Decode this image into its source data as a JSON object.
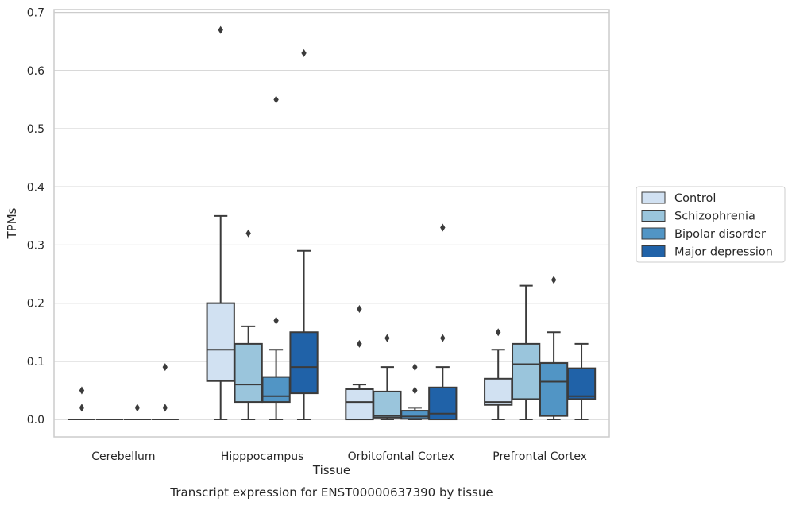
{
  "chart_data": {
    "type": "box",
    "caption": "Transcript expression for ENST00000637390 by tissue",
    "xlabel": "Tissue",
    "ylabel": "TPMs",
    "ylim": [
      -0.03,
      0.705
    ],
    "yticks": [
      "0.0",
      "0.1",
      "0.2",
      "0.3",
      "0.4",
      "0.5",
      "0.6",
      "0.7"
    ],
    "grid": "horizontal",
    "legend_position": "right",
    "categories": [
      "Cerebellum",
      "Hipppocampus",
      "Orbitofontal Cortex",
      "Prefrontal Cortex"
    ],
    "series": [
      {
        "name": "Control",
        "color": "#d1e1f2",
        "boxes": [
          {
            "whislo": 0,
            "q1": 0,
            "med": 0,
            "q3": 0,
            "whishi": 0,
            "fliers": [
              0.05,
              0.02
            ]
          },
          {
            "whislo": 0,
            "q1": 0.066,
            "med": 0.12,
            "q3": 0.2,
            "whishi": 0.35,
            "fliers": [
              0.67
            ]
          },
          {
            "whislo": 0,
            "q1": 0,
            "med": 0.03,
            "q3": 0.052,
            "whishi": 0.06,
            "fliers": [
              0.19,
              0.13
            ]
          },
          {
            "whislo": 0,
            "q1": 0.025,
            "med": 0.03,
            "q3": 0.07,
            "whishi": 0.12,
            "fliers": [
              0.15
            ]
          }
        ]
      },
      {
        "name": "Schizophrenia",
        "color": "#9ac5dc",
        "boxes": [
          {
            "whislo": 0,
            "q1": 0,
            "med": 0,
            "q3": 0,
            "whishi": 0,
            "fliers": []
          },
          {
            "whislo": 0,
            "q1": 0.03,
            "med": 0.06,
            "q3": 0.13,
            "whishi": 0.16,
            "fliers": [
              0.32
            ]
          },
          {
            "whislo": 0,
            "q1": 0.003,
            "med": 0.006,
            "q3": 0.048,
            "whishi": 0.09,
            "fliers": [
              0.14
            ]
          },
          {
            "whislo": 0,
            "q1": 0.035,
            "med": 0.095,
            "q3": 0.13,
            "whishi": 0.23,
            "fliers": []
          }
        ]
      },
      {
        "name": "Bipolar disorder",
        "color": "#5195c5",
        "boxes": [
          {
            "whislo": 0,
            "q1": 0,
            "med": 0,
            "q3": 0,
            "whishi": 0,
            "fliers": [
              0.02
            ]
          },
          {
            "whislo": 0,
            "q1": 0.03,
            "med": 0.04,
            "q3": 0.073,
            "whishi": 0.12,
            "fliers": [
              0.55,
              0.17
            ]
          },
          {
            "whislo": 0,
            "q1": 0.001,
            "med": 0.005,
            "q3": 0.015,
            "whishi": 0.02,
            "fliers": [
              0.09,
              0.05
            ]
          },
          {
            "whislo": 0,
            "q1": 0.006,
            "med": 0.065,
            "q3": 0.097,
            "whishi": 0.15,
            "fliers": [
              0.24
            ]
          }
        ]
      },
      {
        "name": "Major depression",
        "color": "#2062a8",
        "boxes": [
          {
            "whislo": 0,
            "q1": 0,
            "med": 0,
            "q3": 0,
            "whishi": 0,
            "fliers": [
              0.09,
              0.02
            ]
          },
          {
            "whislo": 0,
            "q1": 0.045,
            "med": 0.09,
            "q3": 0.15,
            "whishi": 0.29,
            "fliers": [
              0.63
            ]
          },
          {
            "whislo": 0,
            "q1": 0,
            "med": 0.01,
            "q3": 0.055,
            "whishi": 0.09,
            "fliers": [
              0.33,
              0.14
            ]
          },
          {
            "whislo": 0,
            "q1": 0.035,
            "med": 0.04,
            "q3": 0.088,
            "whishi": 0.13,
            "fliers": []
          }
        ]
      }
    ]
  }
}
